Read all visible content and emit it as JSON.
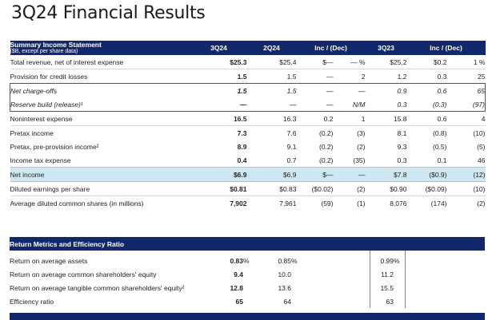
{
  "title": "3Q24 Financial Results",
  "income": {
    "header": {
      "title": "Summary Income Statement",
      "subtitle": "($B, except per share data)",
      "cols": [
        "3Q24",
        "2Q24",
        "Inc / (Dec)",
        "3Q23",
        "Inc / (Dec)"
      ]
    },
    "rows": [
      {
        "label": "Total revenue, net of interest expense",
        "q3": "$25.3",
        "q2": "$25.4",
        "d1": "$—",
        "d1p": "— %",
        "q323": "$25.2",
        "d2": "$0.2",
        "d2p": "1 %"
      },
      {
        "label": "Provision for credit losses",
        "q3": "1.5",
        "q2": "1.5",
        "d1": "—",
        "d1p": "2",
        "q323": "1.2",
        "d2": "0.3",
        "d2p": "25"
      },
      {
        "label": "Net charge-offs",
        "q3": "1.5",
        "q2": "1.5",
        "d1": "—",
        "d1p": "—",
        "q323": "0.9",
        "d2": "0.6",
        "d2p": "65"
      },
      {
        "label": "Reserve build (release)¹",
        "q3": "—",
        "q2": "—",
        "d1": "—",
        "d1p": "N/M",
        "q323": "0.3",
        "d2": "(0.3)",
        "d2p": "(97)"
      },
      {
        "label": "Noninterest expense",
        "q3": "16.5",
        "q2": "16.3",
        "d1": "0.2",
        "d1p": "1",
        "q323": "15.8",
        "d2": "0.6",
        "d2p": "4"
      },
      {
        "label": "Pretax income",
        "q3": "7.3",
        "q2": "7.6",
        "d1": "(0.2)",
        "d1p": "(3)",
        "q323": "8.1",
        "d2": "(0.8)",
        "d2p": "(10)"
      },
      {
        "label": "Pretax, pre-provision income²",
        "q3": "8.9",
        "q2": "9.1",
        "d1": "(0.2)",
        "d1p": "(2)",
        "q323": "9.3",
        "d2": "(0.5)",
        "d2p": "(5)"
      },
      {
        "label": "Income tax expense",
        "q3": "0.4",
        "q2": "0.7",
        "d1": "(0.2)",
        "d1p": "(35)",
        "q323": "0.3",
        "d2": "0.1",
        "d2p": "46"
      },
      {
        "label": "Net income",
        "q3": "$6.9",
        "q2": "$6.9",
        "d1": "$—",
        "d1p": "—",
        "q323": "$7.8",
        "d2": "($0.9)",
        "d2p": "(12)"
      },
      {
        "label": "Diluted earnings per share",
        "q3": "$0.81",
        "q2": "$0.83",
        "d1": "($0.02)",
        "d1p": "(2)",
        "q323": "$0.90",
        "d2": "($0.09)",
        "d2p": "(10)"
      },
      {
        "label": "Average diluted common shares (in millions)",
        "q3": "7,902",
        "q2": "7,961",
        "d1": "(59)",
        "d1p": "(1)",
        "q323": "8,076",
        "d2": "(174)",
        "d2p": "(2)"
      }
    ]
  },
  "returns": {
    "header": "Return Metrics and Efficiency Ratio",
    "rows": [
      {
        "label": "Return on average assets",
        "q3": "0.83",
        "q3u": "%",
        "q2": "0.85",
        "q2u": "%",
        "q323": "0.99",
        "q323u": "%"
      },
      {
        "label": "Return on average common shareholders' equity",
        "q3": "9.4",
        "q3u": "",
        "q2": "10.0",
        "q2u": "",
        "q323": "11.2",
        "q323u": ""
      },
      {
        "label": "Return on average tangible common shareholders' equity²",
        "q3": "12.8",
        "q3u": "",
        "q2": "13.6",
        "q2u": "",
        "q323": "15.5",
        "q323u": ""
      },
      {
        "label": "Efficiency ratio",
        "q3": "65",
        "q3u": "",
        "q2": "64",
        "q2u": "",
        "q323": "63",
        "q323u": ""
      }
    ]
  }
}
